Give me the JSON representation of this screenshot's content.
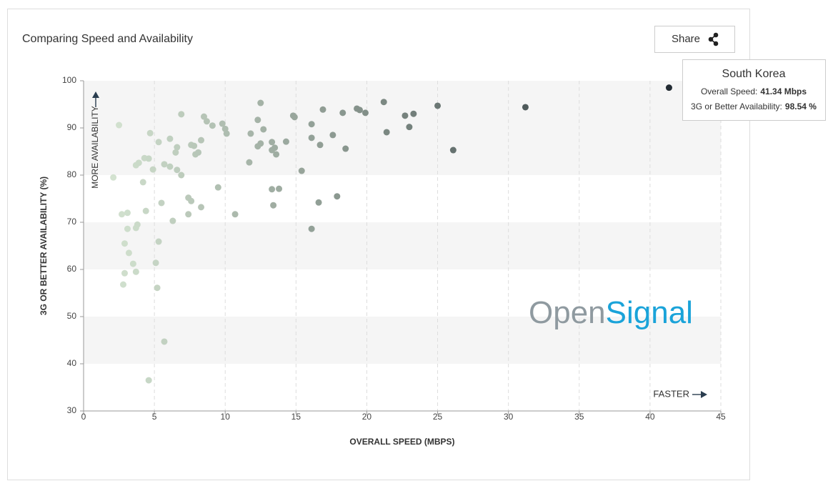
{
  "chart_data": {
    "type": "scatter",
    "title": "Comparing Speed and Availability",
    "share_label": "Share",
    "xlabel": "OVERALL SPEED (MBPS)",
    "ylabel": "3G OR BETTER AVAILABILITY (%)",
    "annotations": {
      "x_hint": "FASTER",
      "y_hint": "MORE AVAILABILITY"
    },
    "logo": {
      "part1": "Open",
      "part2": "Signal"
    },
    "xlim": [
      0,
      45
    ],
    "xticks": [
      0,
      5,
      10,
      15,
      20,
      25,
      30,
      35,
      40,
      45
    ],
    "ylim": [
      30,
      100
    ],
    "yticks": [
      30,
      40,
      50,
      60,
      70,
      80,
      90,
      100
    ],
    "grid": true,
    "color_scale": [
      "#dcecd8",
      "#111a24"
    ],
    "x": [
      2.5,
      2.1,
      2.7,
      3.1,
      3.1,
      2.9,
      3.2,
      3.5,
      2.9,
      3.7,
      2.8,
      3.8,
      3.7,
      3.7,
      3.9,
      4.2,
      4.3,
      4.6,
      4.4,
      4.7,
      4.9,
      5.3,
      5.3,
      5.1,
      5.2,
      5.7,
      4.6,
      5.7,
      5.5,
      6.1,
      6.1,
      6.3,
      6.6,
      6.5,
      6.6,
      6.9,
      6.9,
      7.4,
      7.6,
      7.4,
      7.6,
      7.8,
      7.9,
      8.1,
      8.3,
      8.3,
      8.5,
      8.7,
      9.1,
      9.5,
      9.8,
      10.0,
      10.1,
      10.7,
      11.7,
      11.8,
      12.3,
      12.5,
      12.7,
      12.5,
      12.3,
      13.3,
      13.3,
      13.5,
      13.6,
      14.3,
      13.3,
      13.8,
      13.4,
      14.8,
      14.9,
      15.4,
      16.1,
      16.1,
      16.7,
      16.6,
      16.1,
      16.9,
      17.6,
      17.9,
      18.3,
      18.5,
      19.3,
      19.5,
      19.9,
      21.2,
      21.4,
      22.7,
      23.3,
      23.0,
      25.0,
      26.1,
      31.2,
      41.34
    ],
    "y": [
      90.6,
      79.5,
      71.7,
      72.0,
      68.6,
      65.5,
      63.5,
      61.2,
      59.2,
      59.5,
      56.8,
      69.5,
      68.8,
      82.1,
      82.6,
      78.5,
      83.6,
      83.5,
      72.4,
      88.9,
      81.2,
      87.0,
      65.9,
      61.4,
      56.1,
      44.7,
      36.5,
      82.3,
      74.1,
      87.7,
      81.8,
      70.3,
      85.9,
      84.8,
      81.1,
      80.0,
      92.9,
      75.2,
      74.5,
      71.7,
      86.4,
      86.2,
      84.4,
      84.8,
      87.4,
      73.2,
      92.4,
      91.4,
      90.5,
      77.4,
      90.9,
      89.8,
      88.8,
      71.7,
      82.7,
      88.8,
      91.7,
      95.3,
      89.7,
      86.7,
      86.1,
      87.0,
      85.3,
      85.8,
      84.4,
      87.1,
      77.0,
      77.1,
      73.6,
      92.6,
      92.3,
      80.9,
      90.8,
      87.9,
      86.4,
      74.2,
      68.6,
      93.9,
      88.5,
      75.5,
      93.2,
      85.6,
      94.1,
      93.8,
      93.2,
      95.5,
      89.1,
      92.6,
      93.0,
      90.2,
      94.7,
      85.3,
      94.4,
      98.54
    ],
    "tooltip": {
      "title": "South Korea",
      "rows": [
        {
          "label": "Overall Speed:",
          "value": "41.34 Mbps"
        },
        {
          "label": "3G or Better Availability:",
          "value": "98.54 %"
        }
      ]
    }
  }
}
